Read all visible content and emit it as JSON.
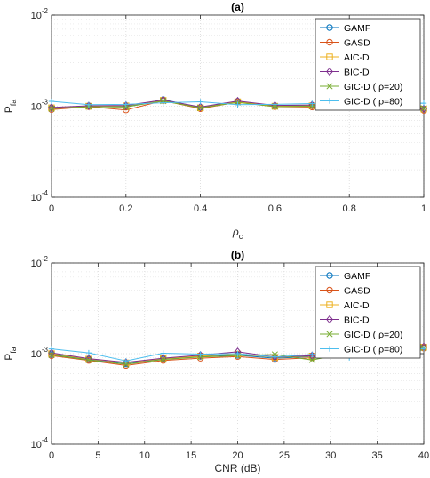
{
  "chart_data": [
    {
      "type": "line",
      "title": "(a)",
      "xlabel": "ρ",
      "xlabel_sub": "c",
      "ylabel": "P",
      "ylabel_sub": "fa",
      "yscale": "log",
      "xlim": [
        0,
        1
      ],
      "ylim": [
        0.0001,
        0.01
      ],
      "x_ticks": [
        "0",
        "0.2",
        "0.4",
        "0.6",
        "0.8",
        "1"
      ],
      "y_ticks": [
        {
          "base": "10",
          "exp": "-4"
        },
        {
          "base": "10",
          "exp": "-3"
        },
        {
          "base": "10",
          "exp": "-2"
        }
      ],
      "grid": true,
      "legend_position": "top-right",
      "x": [
        0,
        0.1,
        0.2,
        0.3,
        0.4,
        0.5,
        0.6,
        0.7,
        0.8,
        0.9,
        1.0
      ],
      "series": [
        {
          "name": "GAMF",
          "color": "#0072BD",
          "marker": "circle",
          "values": [
            0.00095,
            0.00101,
            0.00099,
            0.00118,
            0.00097,
            0.00113,
            0.00101,
            0.00102,
            0.00103,
            0.00117,
            0.00092
          ]
        },
        {
          "name": "GASD",
          "color": "#D95319",
          "marker": "circle",
          "values": [
            0.00092,
            0.00099,
            0.00091,
            0.00115,
            0.00094,
            0.00111,
            0.00099,
            0.00098,
            0.00099,
            0.00118,
            0.0009
          ]
        },
        {
          "name": "AIC-D",
          "color": "#EDB120",
          "marker": "square",
          "values": [
            0.00096,
            0.001,
            0.00101,
            0.00116,
            0.00096,
            0.00112,
            0.001,
            0.00101,
            0.00101,
            0.00116,
            0.00093
          ]
        },
        {
          "name": "BIC-D",
          "color": "#7E2F8E",
          "marker": "diamond",
          "values": [
            0.00097,
            0.00101,
            0.00102,
            0.00117,
            0.00098,
            0.00114,
            0.00102,
            0.00103,
            0.00104,
            0.00118,
            0.00094
          ]
        },
        {
          "name": "GIC-D ( ρ=20)",
          "color": "#77AC30",
          "marker": "x",
          "values": [
            0.00094,
            0.00099,
            0.00098,
            0.00114,
            0.00096,
            0.0011,
            0.00099,
            0.001,
            0.00101,
            0.00115,
            0.00095
          ]
        },
        {
          "name": "GIC-D ( ρ=80)",
          "color": "#4DBEEE",
          "marker": "plus",
          "values": [
            0.00113,
            0.00104,
            0.00105,
            0.00109,
            0.00112,
            0.00104,
            0.00105,
            0.00107,
            0.00109,
            0.00107,
            0.00108
          ]
        }
      ]
    },
    {
      "type": "line",
      "title": "(b)",
      "xlabel": "CNR (dB)",
      "xlabel_sub": "",
      "ylabel": "P",
      "ylabel_sub": "fa",
      "yscale": "log",
      "xlim": [
        0,
        40
      ],
      "ylim": [
        0.0001,
        0.01
      ],
      "x_ticks": [
        "0",
        "5",
        "10",
        "15",
        "20",
        "25",
        "30",
        "35",
        "40"
      ],
      "y_ticks": [
        {
          "base": "10",
          "exp": "-4"
        },
        {
          "base": "10",
          "exp": "-3"
        },
        {
          "base": "10",
          "exp": "-2"
        }
      ],
      "grid": true,
      "legend_position": "top-right",
      "x": [
        0,
        4,
        8,
        12,
        16,
        20,
        24,
        28,
        32,
        36,
        40
      ],
      "series": [
        {
          "name": "GAMF",
          "color": "#0072BD",
          "marker": "circle",
          "values": [
            0.00098,
            0.00086,
            0.00077,
            0.00087,
            0.00093,
            0.00096,
            0.00089,
            0.00093,
            0.00104,
            0.00103,
            0.00117
          ]
        },
        {
          "name": "GASD",
          "color": "#D95319",
          "marker": "circle",
          "values": [
            0.00095,
            0.00084,
            0.00074,
            0.00084,
            0.00089,
            0.00093,
            0.00086,
            0.0009,
            0.00101,
            0.00102,
            0.00115
          ]
        },
        {
          "name": "AIC-D",
          "color": "#EDB120",
          "marker": "square",
          "values": [
            0.001,
            0.00087,
            0.00079,
            0.00088,
            0.00094,
            0.00099,
            0.00091,
            0.00094,
            0.00105,
            0.00104,
            0.00118
          ]
        },
        {
          "name": "BIC-D",
          "color": "#7E2F8E",
          "marker": "diamond",
          "values": [
            0.00102,
            0.00088,
            0.0008,
            0.00089,
            0.00096,
            0.00105,
            0.00092,
            0.00095,
            0.00106,
            0.00106,
            0.00119
          ]
        },
        {
          "name": "GIC-D ( ρ=20)",
          "color": "#77AC30",
          "marker": "x",
          "values": [
            0.00097,
            0.00085,
            0.00076,
            0.00086,
            0.00092,
            0.00095,
            0.00098,
            0.00085,
            0.00103,
            0.00104,
            0.00116
          ]
        },
        {
          "name": "GIC-D ( ρ=80)",
          "color": "#4DBEEE",
          "marker": "plus",
          "values": [
            0.00113,
            0.00102,
            0.00083,
            0.00101,
            0.00099,
            0.001,
            0.00092,
            0.00098,
            0.0009,
            0.00107,
            0.00114
          ]
        }
      ]
    }
  ]
}
